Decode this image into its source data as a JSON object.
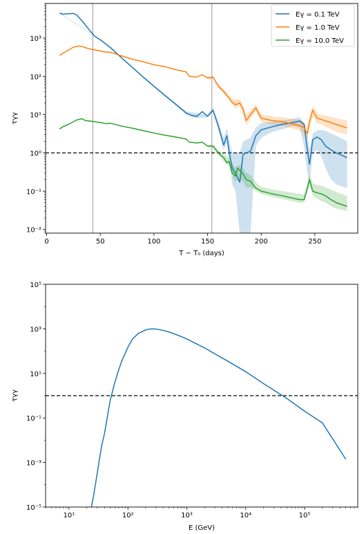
{
  "chart_data": [
    {
      "type": "line",
      "xlabel": "T − T₀ (days)",
      "ylabel": "τγγ",
      "yscale": "log",
      "xlim": [
        -1,
        290
      ],
      "ylim": [
        0.008,
        8000
      ],
      "xticks": [
        0,
        50,
        100,
        150,
        200,
        250
      ],
      "xtick_labels": [
        "0",
        "50",
        "100",
        "150",
        "200",
        "250"
      ],
      "yticks": [
        0.01,
        0.1,
        1,
        10,
        100,
        1000
      ],
      "ytick_labels": [
        "10⁻²",
        "10⁻¹",
        "10⁰",
        "10¹",
        "10²",
        "10³"
      ],
      "vlines": [
        43,
        154
      ],
      "hline": 1,
      "legend": {
        "placement": "top-right"
      },
      "series": [
        {
          "name": "Eγ = 0.1 TeV",
          "color": "#1f77b4",
          "x": [
            12,
            15,
            20,
            25,
            28,
            32,
            36,
            40,
            45,
            50,
            55,
            60,
            70,
            80,
            90,
            100,
            110,
            120,
            130,
            135,
            140,
            145,
            150,
            155,
            160,
            165,
            168,
            170,
            173,
            176,
            180,
            183,
            186,
            190,
            195,
            200,
            210,
            220,
            230,
            236,
            240,
            243,
            245,
            248,
            252,
            256,
            260,
            265,
            270,
            280
          ],
          "y": [
            4500,
            4200,
            4300,
            4400,
            4000,
            3000,
            2200,
            1600,
            1100,
            900,
            700,
            550,
            300,
            170,
            95,
            55,
            32,
            19,
            11,
            9.5,
            9,
            12,
            9,
            13,
            5,
            1.6,
            2.8,
            1.1,
            0.4,
            0.3,
            0.17,
            0.9,
            1.0,
            1.1,
            2.8,
            4,
            4.8,
            5.6,
            6.2,
            6.8,
            5.5,
            1.2,
            0.5,
            2.2,
            2.6,
            2.2,
            1.5,
            1.2,
            1.0,
            0.75
          ],
          "band": {
            "x": [
              12,
              50,
              100,
              130,
              140,
              150,
              155,
              160,
              165,
              168,
              170,
              173,
              176,
              180,
              183,
              186,
              190,
              195,
              200,
              210,
              220,
              230,
              236,
              240,
              243,
              245,
              248,
              252,
              256,
              260,
              265,
              270,
              280
            ],
            "lower": [
              4400,
              880,
              52,
              10,
              8,
              8.5,
              12,
              4,
              1.2,
              1.8,
              0.6,
              0.15,
              0.1,
              0.008,
              0.008,
              0.008,
              0.008,
              1.5,
              2.5,
              3.5,
              4.2,
              5,
              4.5,
              1.4,
              0.3,
              0.15,
              1.0,
              1.2,
              0.8,
              0.4,
              0.2,
              0.15,
              0.12
            ],
            "upper": [
              4600,
              920,
              58,
              12,
              11,
              10,
              15,
              6.5,
              2.5,
              4.5,
              2.2,
              1.0,
              1.0,
              1.0,
              2.0,
              2.2,
              2.5,
              4.5,
              6,
              6.5,
              7,
              7.8,
              8.5,
              6,
              3,
              1.2,
              3.2,
              3.8,
              4,
              3.8,
              3.2,
              2.8,
              2.0
            ]
          }
        },
        {
          "name": "Eγ = 1.0 TeV",
          "color": "#ff7f0e",
          "x": [
            12,
            15,
            20,
            25,
            30,
            33,
            36,
            40,
            45,
            50,
            55,
            60,
            70,
            80,
            90,
            100,
            110,
            120,
            130,
            133,
            140,
            145,
            150,
            155,
            160,
            165,
            168,
            172,
            176,
            180,
            183,
            186,
            190,
            195,
            200,
            210,
            220,
            230,
            236,
            240,
            243,
            245,
            248,
            252,
            256,
            260,
            265,
            270,
            280
          ],
          "y": [
            350,
            400,
            480,
            580,
            620,
            600,
            560,
            520,
            490,
            460,
            430,
            420,
            340,
            280,
            240,
            200,
            180,
            150,
            130,
            100,
            95,
            110,
            90,
            95,
            55,
            40,
            32,
            22,
            18,
            20,
            14,
            7,
            10,
            15,
            8,
            7,
            6.5,
            5.6,
            5.2,
            4.5,
            3.2,
            6.5,
            13,
            8,
            7.5,
            6.8,
            6.2,
            5.5,
            4.5
          ],
          "band": {
            "x": [
              150,
              155,
              160,
              165,
              170,
              175,
              180,
              183,
              186,
              190,
              195,
              200,
              210,
              220,
              230,
              236,
              240,
              243,
              245,
              248,
              252,
              256,
              260,
              265,
              270,
              280
            ],
            "lower": [
              85,
              88,
              50,
              35,
              25,
              15,
              16,
              10,
              5,
              8,
              12,
              6.5,
              5.5,
              5,
              4.3,
              3.8,
              3.2,
              2.2,
              4.5,
              9,
              6,
              5.5,
              4.8,
              4.2,
              3.5,
              3.0
            ],
            "upper": [
              96,
              102,
              62,
              47,
              32,
              25,
              25,
              18,
              10,
              13,
              19,
              10,
              9,
              8.5,
              7.8,
              7.2,
              6.3,
              4.8,
              9,
              17,
              11,
              10,
              9.5,
              8.8,
              8.0,
              7.0
            ]
          }
        },
        {
          "name": "Eγ = 10.0 TeV",
          "color": "#2ca02c",
          "x": [
            12,
            15,
            20,
            25,
            28,
            30,
            33,
            36,
            40,
            45,
            50,
            55,
            60,
            70,
            80,
            90,
            100,
            110,
            120,
            130,
            133,
            140,
            145,
            150,
            155,
            160,
            165,
            168,
            170,
            173,
            176,
            178,
            180,
            183,
            186,
            190,
            195,
            200,
            210,
            220,
            230,
            236,
            240,
            243,
            245,
            248,
            252,
            256,
            260,
            265,
            270,
            280
          ],
          "y": [
            4.2,
            4.8,
            5.5,
            6.5,
            7.2,
            7.5,
            7.8,
            7.0,
            6.8,
            6.5,
            6.2,
            5.8,
            5.9,
            5.0,
            4.4,
            3.8,
            3.3,
            2.9,
            2.6,
            2.3,
            1.9,
            1.8,
            1.9,
            1.5,
            1.5,
            1.0,
            0.75,
            0.55,
            0.6,
            0.3,
            0.25,
            0.4,
            0.35,
            0.28,
            0.2,
            0.18,
            0.12,
            0.1,
            0.085,
            0.075,
            0.065,
            0.06,
            0.06,
            0.12,
            0.2,
            0.1,
            0.09,
            0.085,
            0.075,
            0.06,
            0.05,
            0.04
          ],
          "band": {
            "x": [
              150,
              155,
              160,
              165,
              170,
              175,
              180,
              183,
              186,
              190,
              195,
              200,
              210,
              220,
              230,
              236,
              240,
              243,
              245,
              248,
              252,
              256,
              260,
              265,
              270,
              280
            ],
            "lower": [
              1.4,
              1.35,
              0.9,
              0.6,
              0.45,
              0.18,
              0.2,
              0.18,
              0.12,
              0.13,
              0.1,
              0.085,
              0.07,
              0.062,
              0.054,
              0.05,
              0.05,
              0.095,
              0.15,
              0.075,
              0.065,
              0.055,
              0.05,
              0.04,
              0.035,
              0.03
            ],
            "upper": [
              1.6,
              1.65,
              1.15,
              0.95,
              0.75,
              0.42,
              0.48,
              0.4,
              0.3,
              0.26,
              0.17,
              0.13,
              0.11,
              0.1,
              0.09,
              0.085,
              0.082,
              0.17,
              0.28,
              0.16,
              0.145,
              0.14,
              0.125,
              0.11,
              0.095,
              0.075
            ]
          }
        }
      ]
    },
    {
      "type": "line",
      "xlabel": "E (GeV)",
      "ylabel": "τγγ",
      "xscale": "log",
      "yscale": "log",
      "xlim": [
        4,
        800000
      ],
      "ylim": [
        1e-05,
        100000
      ],
      "xticks": [
        10,
        100,
        1000,
        10000,
        100000
      ],
      "xtick_labels": [
        "10¹",
        "10²",
        "10³",
        "10⁴",
        "10⁵"
      ],
      "yticks": [
        1e-05,
        0.001,
        0.1,
        10,
        1000,
        100000
      ],
      "ytick_labels": [
        "10⁻⁵",
        "10⁻³",
        "10⁻¹",
        "10¹",
        "10³",
        "10⁵"
      ],
      "hline": 1,
      "series": [
        {
          "color": "#1f77b4",
          "x": [
            24,
            26,
            28,
            30,
            33,
            36,
            40,
            45,
            50,
            60,
            70,
            80,
            100,
            120,
            150,
            200,
            250,
            300,
            400,
            500,
            700,
            1000,
            2000,
            3000,
            5000,
            10000,
            20000,
            50000,
            100000,
            200000,
            500000
          ],
          "y": [
            1e-05,
            3e-05,
            0.0001,
            0.0003,
            0.0015,
            0.006,
            0.02,
            0.12,
            0.6,
            4,
            15,
            40,
            150,
            350,
            620,
            900,
            1000,
            980,
            850,
            720,
            520,
            350,
            140,
            75,
            35,
            12,
            3.5,
            0.75,
            0.2,
            0.06,
            0.0014
          ]
        }
      ]
    }
  ]
}
